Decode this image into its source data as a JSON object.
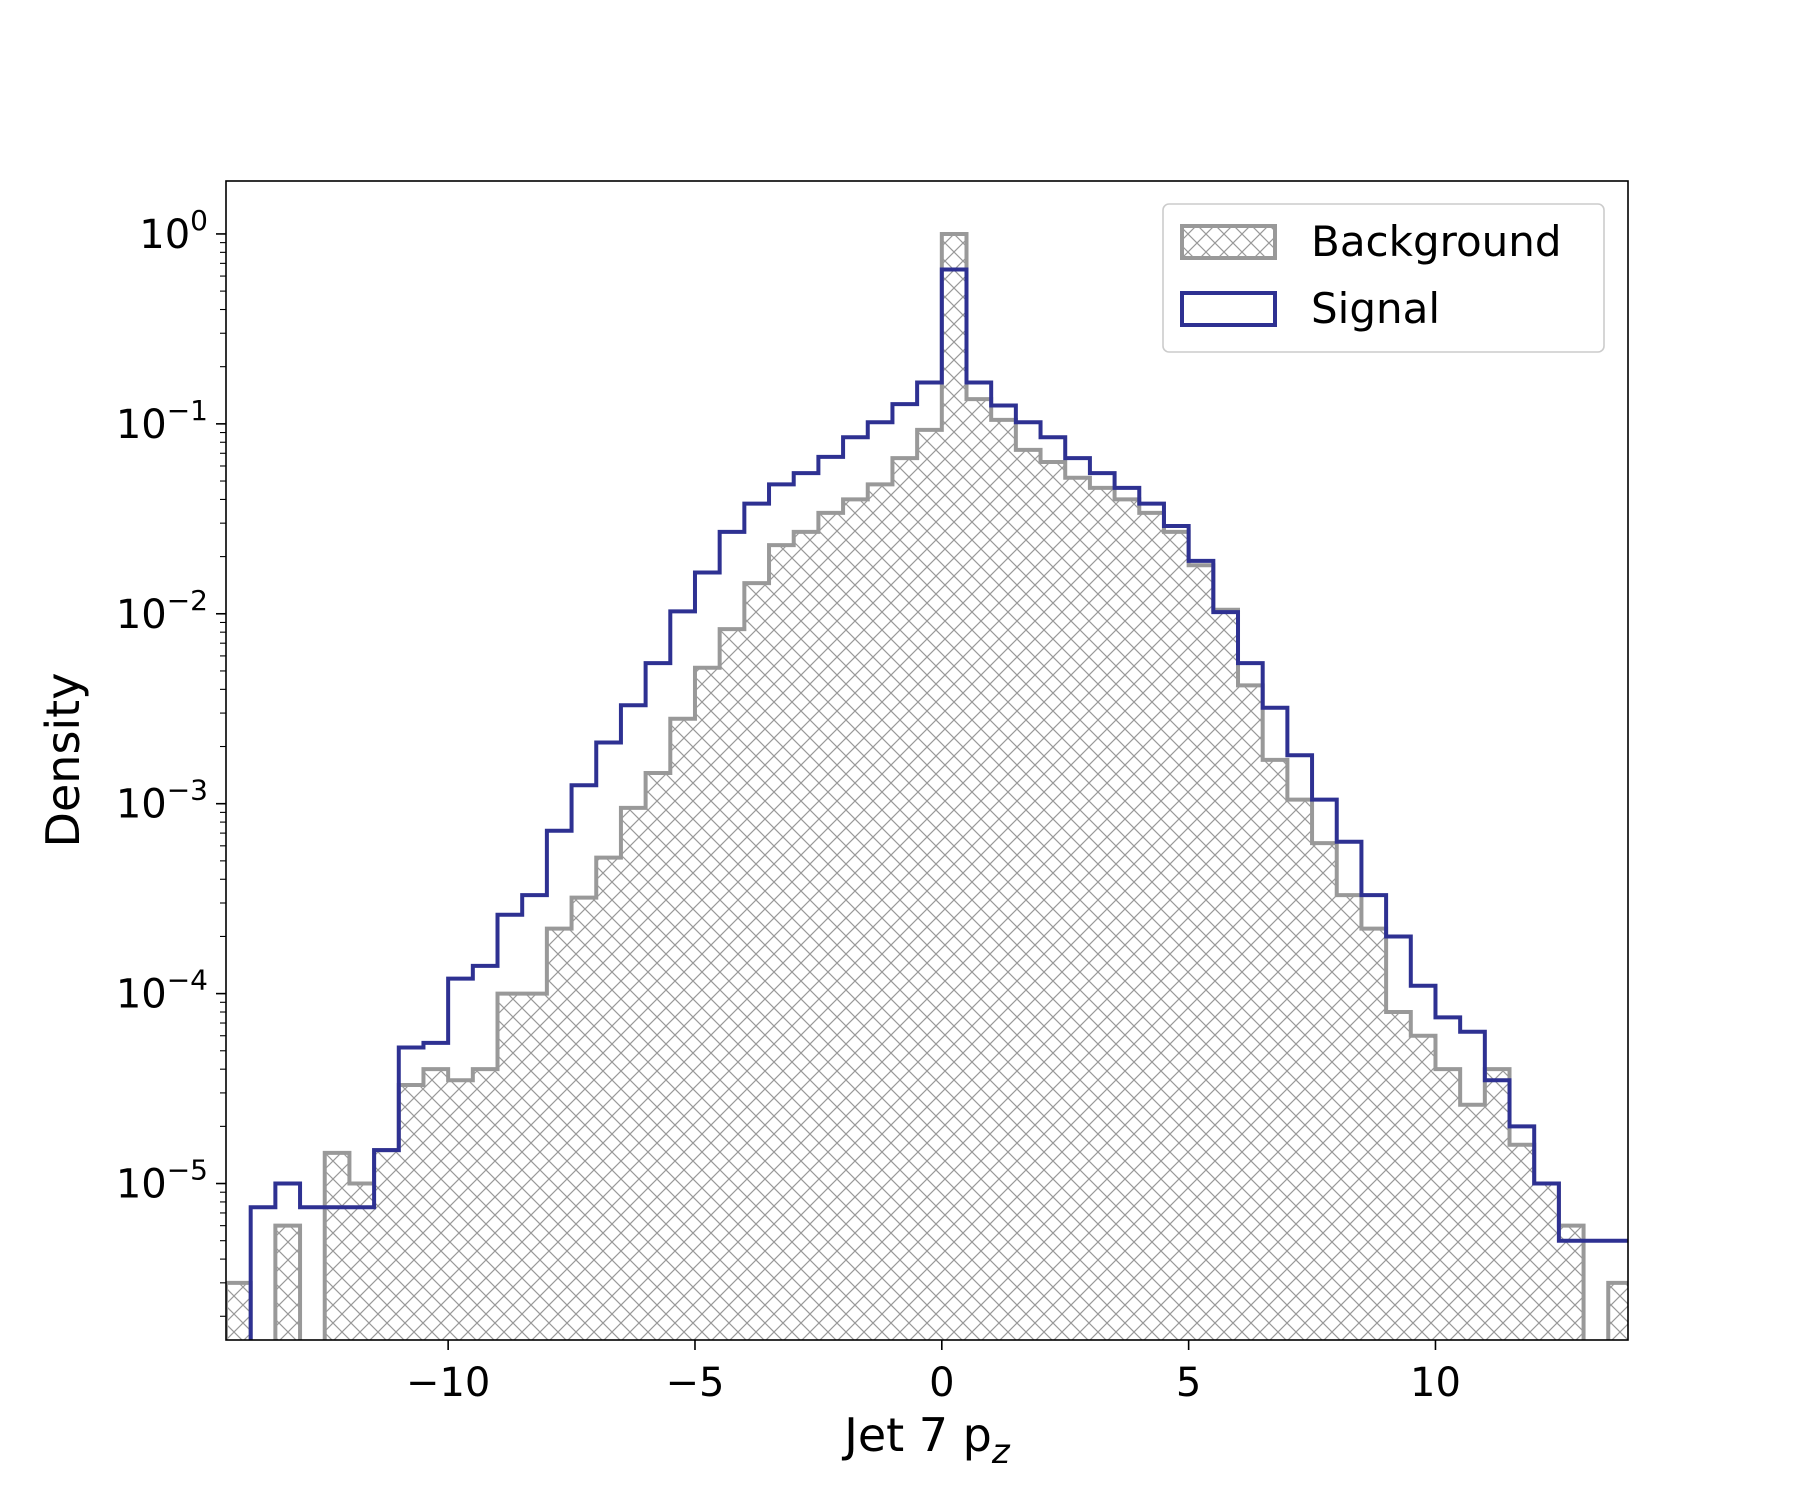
{
  "chart_data": {
    "type": "histogram",
    "xlabel": "Jet 7 p",
    "xlabel_subscript": "z",
    "ylabel": "Density",
    "yscale": "log",
    "xlim": [
      -14.5,
      13.9
    ],
    "ylim": [
      1.5e-06,
      1.9
    ],
    "xticks": [
      {
        "value": -10,
        "label": "−10"
      },
      {
        "value": -5,
        "label": "−5"
      },
      {
        "value": 0,
        "label": "0"
      },
      {
        "value": 5,
        "label": "5"
      },
      {
        "value": 10,
        "label": "10"
      }
    ],
    "yticks": [
      {
        "value": 1,
        "base": "10",
        "exp": "0"
      },
      {
        "value": 0.1,
        "base": "10",
        "exp": "−1"
      },
      {
        "value": 0.01,
        "base": "10",
        "exp": "−2"
      },
      {
        "value": 0.001,
        "base": "10",
        "exp": "−3"
      },
      {
        "value": 0.0001,
        "base": "10",
        "exp": "−4"
      },
      {
        "value": 1e-05,
        "base": "10",
        "exp": "−5"
      }
    ],
    "legend_position": "upper right",
    "bin_edges": [
      -14.5,
      -14.0,
      -13.5,
      -13.0,
      -12.5,
      -12.0,
      -11.5,
      -11.0,
      -10.5,
      -10.0,
      -9.5,
      -9.0,
      -8.5,
      -8.0,
      -7.5,
      -7.0,
      -6.5,
      -6.0,
      -5.5,
      -5.0,
      -4.5,
      -4.0,
      -3.5,
      -3.0,
      -2.5,
      -2.0,
      -1.5,
      -1.0,
      -0.5,
      0.0,
      0.5,
      1.0,
      1.5,
      2.0,
      2.5,
      3.0,
      3.5,
      4.0,
      4.5,
      5.0,
      5.5,
      6.0,
      6.5,
      7.0,
      7.5,
      8.0,
      8.5,
      9.0,
      9.5,
      10.0,
      10.5,
      11.0,
      11.5,
      12.0,
      12.5,
      13.0,
      13.5,
      14.0
    ],
    "series": [
      {
        "name": "Background",
        "style": "hatched-step",
        "color": "#999999",
        "values": [
          3e-06,
          0,
          6e-06,
          0,
          1.45e-05,
          1e-05,
          1.5e-05,
          3.3e-05,
          4e-05,
          3.5e-05,
          4e-05,
          0.0001,
          0.0001,
          0.00022,
          0.00032,
          0.00052,
          0.00095,
          0.00145,
          0.0028,
          0.0052,
          0.0083,
          0.0145,
          0.023,
          0.027,
          0.034,
          0.04,
          0.048,
          0.066,
          0.093,
          1.0,
          0.135,
          0.105,
          0.073,
          0.063,
          0.052,
          0.046,
          0.04,
          0.034,
          0.027,
          0.018,
          0.0105,
          0.0042,
          0.0017,
          0.00105,
          0.00062,
          0.00033,
          0.00022,
          8e-05,
          6e-05,
          4e-05,
          2.6e-05,
          4e-05,
          1.6e-05,
          1e-05,
          6e-06,
          0,
          3e-06
        ]
      },
      {
        "name": "Signal",
        "style": "step",
        "color": "#2e3192",
        "values": [
          0,
          7.5e-06,
          1e-05,
          7.5e-06,
          7.5e-06,
          7.5e-06,
          1.5e-05,
          5.2e-05,
          5.5e-05,
          0.00012,
          0.00014,
          0.00026,
          0.00033,
          0.00072,
          0.00125,
          0.0021,
          0.0033,
          0.0055,
          0.0103,
          0.0165,
          0.027,
          0.038,
          0.048,
          0.055,
          0.067,
          0.085,
          0.102,
          0.127,
          0.165,
          0.65,
          0.165,
          0.125,
          0.102,
          0.085,
          0.066,
          0.055,
          0.046,
          0.038,
          0.029,
          0.019,
          0.0102,
          0.0055,
          0.0032,
          0.0018,
          0.00105,
          0.00063,
          0.00033,
          0.0002,
          0.00011,
          7.5e-05,
          6.3e-05,
          3.5e-05,
          2e-05,
          1e-05,
          5e-06,
          5e-06,
          5e-06
        ]
      }
    ]
  }
}
